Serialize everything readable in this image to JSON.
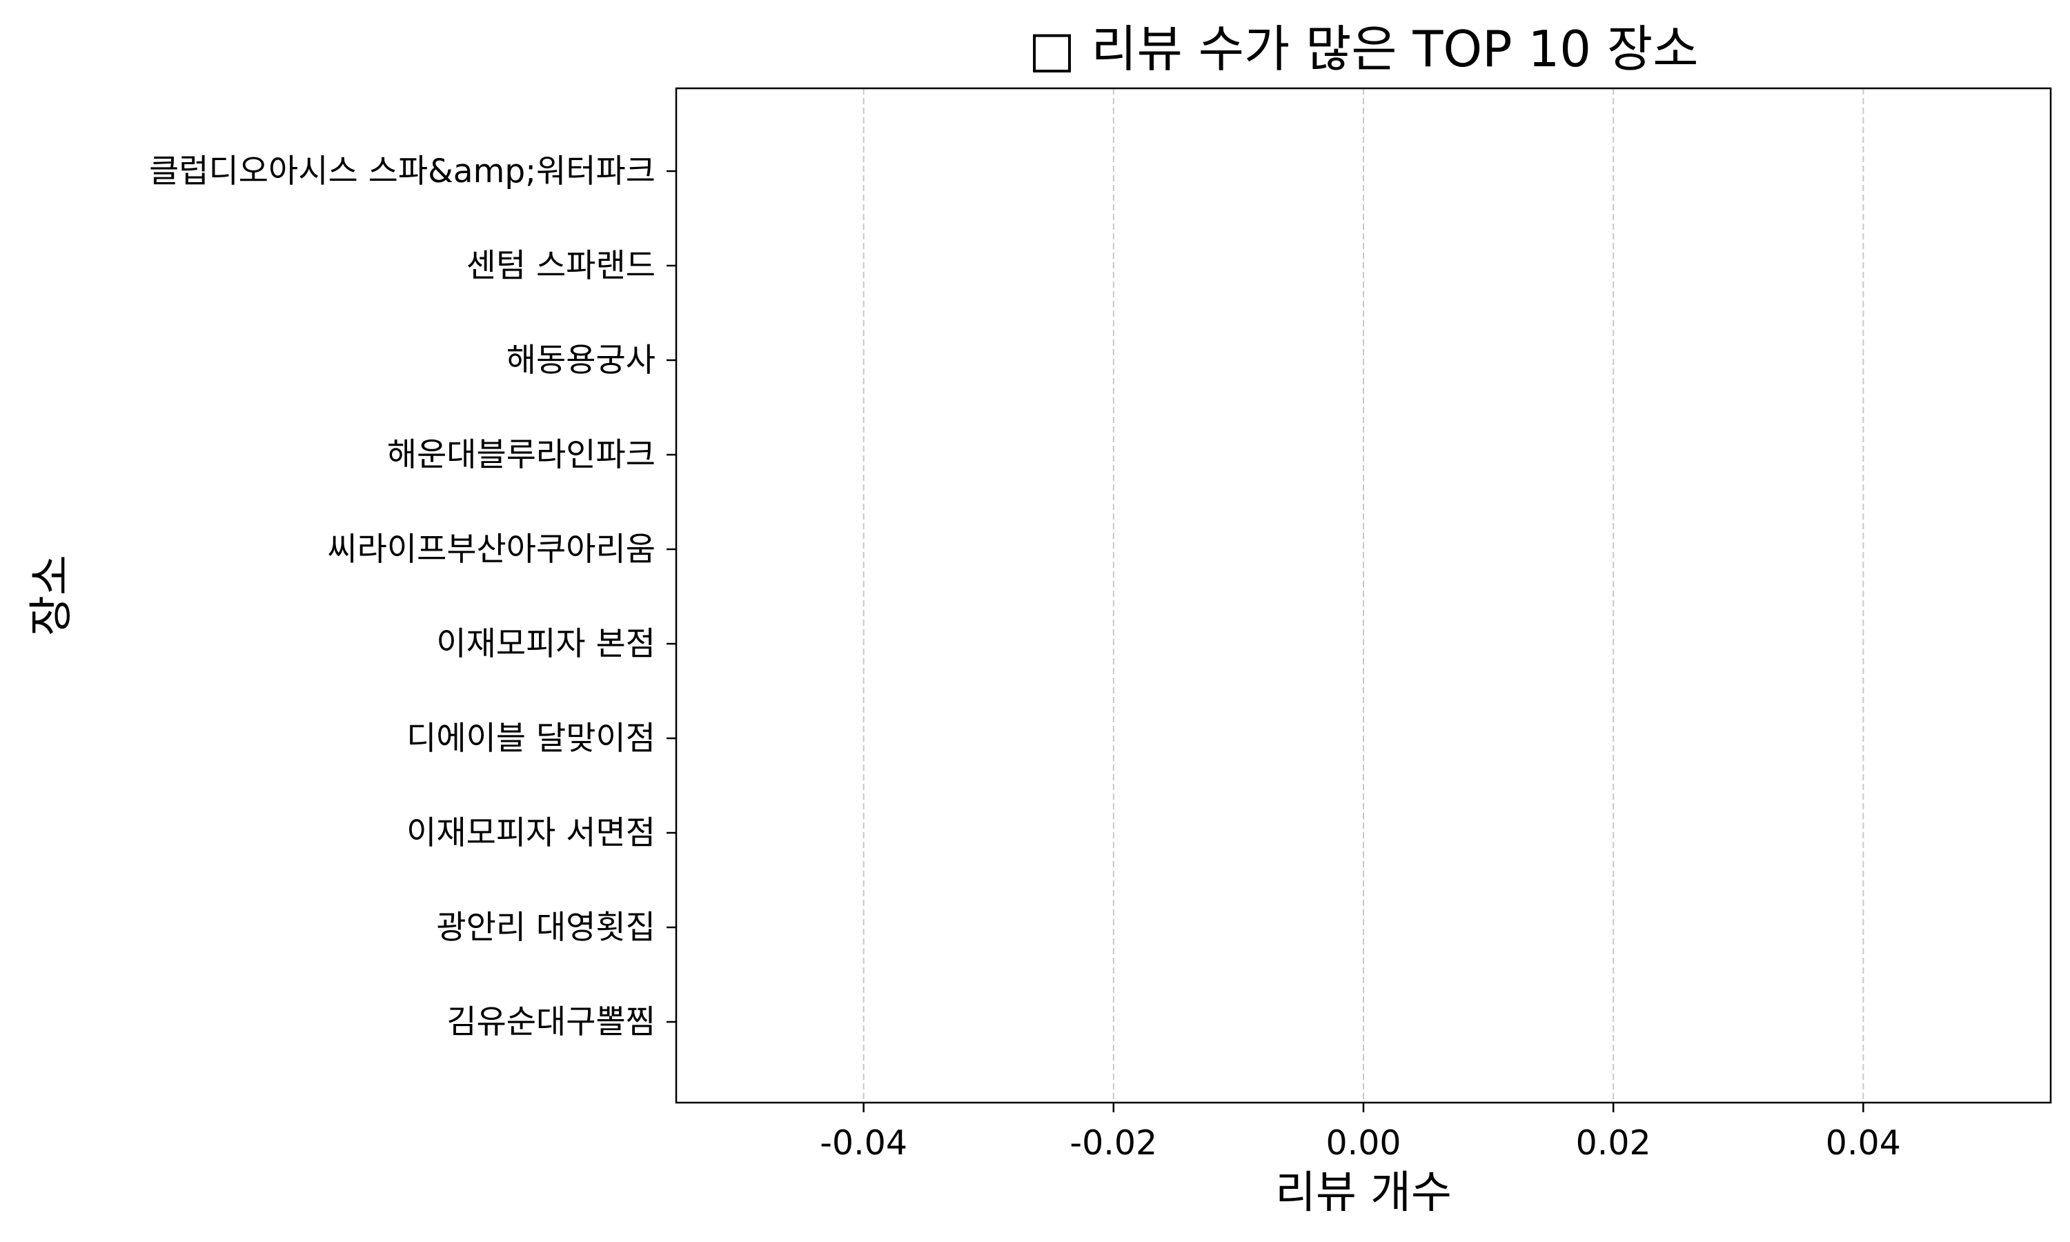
{
  "chart_data": {
    "type": "bar",
    "orientation": "horizontal",
    "title": "□ 리뷰 수가 많은 TOP 10 장소",
    "xlabel": "리뷰 개수",
    "ylabel": "장소",
    "categories": [
      "클럽디오아시스 스파&amp;워터파크",
      "센텀 스파랜드",
      "해동용궁사",
      "해운대블루라인파크",
      "씨라이프부산아쿠아리움",
      "이재모피자 본점",
      "디에이블 달맞이점",
      "이재모피자 서면점",
      "광안리 대영횟집",
      "김유순대구뽈찜"
    ],
    "values": [
      0,
      0,
      0,
      0,
      0,
      0,
      0,
      0,
      0,
      0
    ],
    "xlim": [
      -0.055,
      0.055
    ],
    "xticks": [
      -0.04,
      -0.02,
      0.0,
      0.02,
      0.04
    ],
    "xtick_labels": [
      "-0.04",
      "-0.02",
      "0.00",
      "0.02",
      "0.04"
    ],
    "grid": {
      "x": true,
      "y": false,
      "style": "dashed"
    },
    "bar_color": "#4c72b0",
    "grid_color": "#c8c8c8",
    "axis_color": "#000000"
  }
}
